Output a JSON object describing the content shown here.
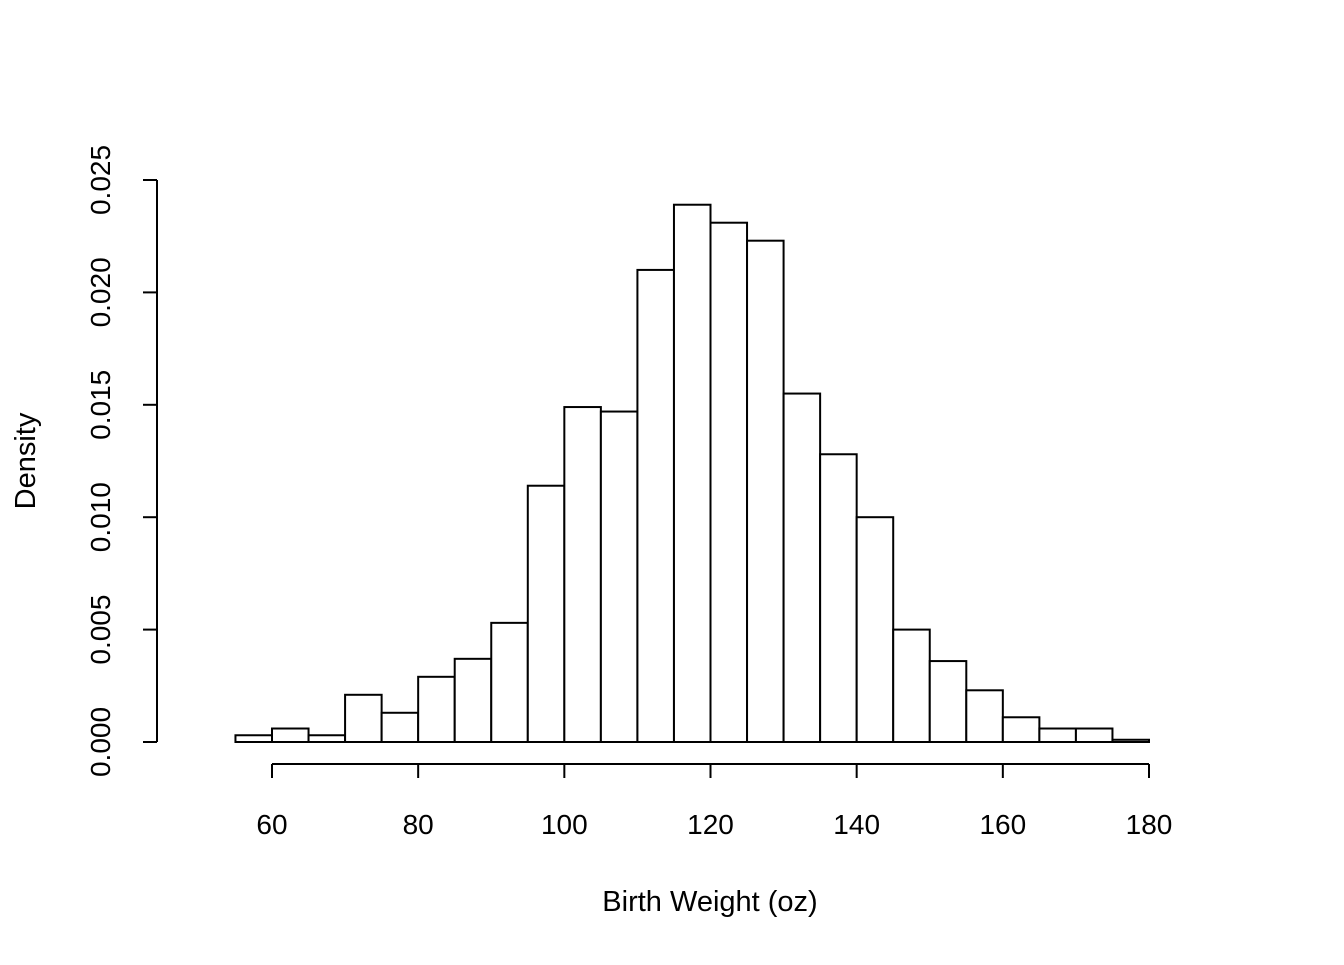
{
  "chart_data": {
    "type": "bar",
    "title": "",
    "xlabel": "Birth Weight (oz)",
    "ylabel": "Density",
    "bin_edges": [
      55,
      60,
      65,
      70,
      75,
      80,
      85,
      90,
      95,
      100,
      105,
      110,
      115,
      120,
      125,
      130,
      135,
      140,
      145,
      150,
      155,
      160,
      165,
      170,
      175,
      180
    ],
    "values": [
      0.0003,
      0.0006,
      0.0003,
      0.0021,
      0.0013,
      0.0029,
      0.0037,
      0.0053,
      0.0114,
      0.0149,
      0.0147,
      0.021,
      0.0239,
      0.0231,
      0.0223,
      0.0155,
      0.0128,
      0.01,
      0.005,
      0.0036,
      0.0023,
      0.0011,
      0.0006,
      0.0006,
      0.0001
    ],
    "xlim": [
      55,
      180
    ],
    "ylim": [
      0,
      0.025
    ],
    "x_ticks": [
      "60",
      "80",
      "100",
      "120",
      "140",
      "160",
      "180"
    ],
    "y_ticks": [
      "0.000",
      "0.005",
      "0.010",
      "0.015",
      "0.020",
      "0.025"
    ],
    "grid": false,
    "bar_fill": "#ffffff",
    "bar_stroke": "#000000"
  }
}
